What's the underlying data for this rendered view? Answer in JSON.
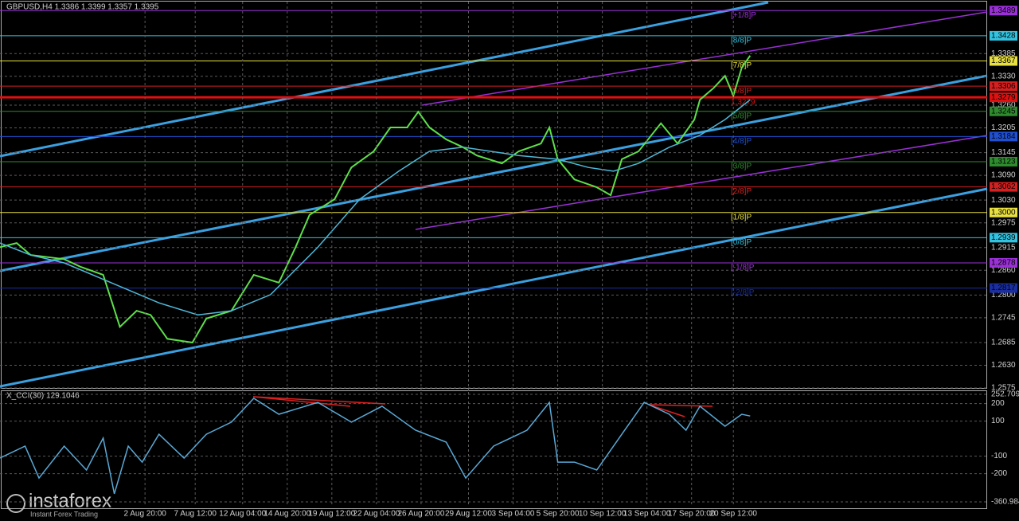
{
  "chart_data": [
    {
      "type": "line",
      "title": "GBPUSD,H4 1.3386 1.3399 1.3357 1.3395",
      "xlim": [
        0,
        354
      ],
      "ylim": [
        1.2575,
        1.3505
      ],
      "grid": true,
      "yticks": [
        1.3385,
        {
          "value": 1.333,
          "label": "1.3330"
        },
        {
          "value": 1.326,
          "label": "1.3260"
        },
        1.3205,
        1.3145,
        {
          "value": 1.309,
          "label": "1.3090"
        },
        {
          "value": 1.303,
          "label": "1.3030"
        },
        1.2975,
        1.2915,
        {
          "value": 1.286,
          "label": "1.2860"
        },
        {
          "value": 1.28,
          "label": "1.2800"
        },
        1.2745,
        1.2685,
        {
          "value": 1.263,
          "label": "1.2630"
        },
        1.2575
      ],
      "series": [
        {
          "color": "#5ee04a",
          "x": [
            0,
            6,
            11,
            23,
            29,
            37,
            43,
            49,
            54,
            60,
            69,
            74,
            83,
            91,
            100,
            106,
            111,
            120,
            126,
            134,
            140,
            146,
            150,
            154,
            160,
            166,
            171,
            180,
            186,
            194,
            197,
            200,
            206,
            214,
            219,
            223,
            229,
            237,
            243,
            249,
            251,
            256,
            260,
            263,
            266,
            269
          ],
          "values": [
            1.2916,
            1.2926,
            1.2897,
            1.2887,
            1.2868,
            1.2849,
            1.2723,
            1.2762,
            1.2752,
            1.2694,
            1.2685,
            1.2743,
            1.2762,
            1.2849,
            1.283,
            1.2916,
            1.2994,
            1.3032,
            1.3109,
            1.3148,
            1.3206,
            1.3206,
            1.3244,
            1.3206,
            1.3177,
            1.3158,
            1.3138,
            1.3119,
            1.3148,
            1.3167,
            1.3206,
            1.3129,
            1.308,
            1.3061,
            1.3042,
            1.3129,
            1.3148,
            1.3216,
            1.3167,
            1.3225,
            1.3273,
            1.3302,
            1.3331,
            1.3283,
            1.3351,
            1.338
          ]
        },
        {
          "color": "#4fb8d8",
          "x": [
            0,
            11,
            23,
            57,
            71,
            83,
            97,
            114,
            129,
            143,
            154,
            166,
            186,
            200,
            211,
            220,
            229,
            240,
            251,
            260,
            269
          ],
          "values": [
            1.2926,
            1.2897,
            1.2878,
            1.2781,
            1.2752,
            1.2762,
            1.2801,
            1.2916,
            1.3032,
            1.31,
            1.3148,
            1.3158,
            1.3138,
            1.3129,
            1.3109,
            1.31,
            1.3119,
            1.3158,
            1.3187,
            1.3225,
            1.3273
          ]
        }
      ],
      "levels": [
        {
          "name": "[+1/8]P",
          "value": 1.3489,
          "value_label": "1.3489",
          "color": "#9b30d8"
        },
        {
          "name": "[8/8]P",
          "value": 1.3428,
          "value_label": "1.3428",
          "color": "#33c3e0"
        },
        {
          "name": "[7/8]P",
          "value": 1.3367,
          "value_label": "1.3367",
          "color": "#e8e040"
        },
        {
          "name": "[6/8]P",
          "value": 1.3306,
          "value_label": "1.3306",
          "color": "#d42020"
        },
        {
          "name": "1.3279",
          "value": 1.3279,
          "value_label": "1.3279",
          "color": "#e01010"
        },
        {
          "name": "[5/8]P",
          "value": 1.3245,
          "value_label": "1.3245",
          "color": "#2e8b2e"
        },
        {
          "name": "[4/8]P",
          "value": 1.3184,
          "value_label": "1.3184",
          "color": "#2050d0"
        },
        {
          "name": "[3/8]P",
          "value": 1.3123,
          "value_label": "1.3123",
          "color": "#2e8b2e"
        },
        {
          "name": "[2/8]P",
          "value": 1.3062,
          "value_label": "1.3062",
          "color": "#d42020"
        },
        {
          "name": "[1/8]P",
          "value": 1.3,
          "value_label": "1.3000",
          "color": "#e8e040"
        },
        {
          "name": "[0/8]P",
          "value": 1.2939,
          "value_label": "1.2939",
          "color": "#33c3e0"
        },
        {
          "name": "[-1/8]P",
          "value": 1.2878,
          "value_label": "1.2878",
          "color": "#9b30d8"
        },
        {
          "name": "[-2/8]P",
          "value": 1.2817,
          "value_label": "1.2817",
          "color": "#1a2ea0"
        }
      ]
    },
    {
      "type": "line",
      "title": "X_CCI(30) 129.1046",
      "xlim": [
        0,
        354
      ],
      "ylim": [
        -360.984,
        252.7091
      ],
      "grid": true,
      "yticks": [
        252.7091,
        200,
        100,
        -100,
        -200,
        -360.984
      ],
      "xticks": [
        {
          "value": 52,
          "label": "2 Aug 20:00"
        },
        {
          "value": 70,
          "label": "7 Aug 12:00"
        },
        {
          "value": 87,
          "label": "12 Aug 04:00"
        },
        {
          "value": 103,
          "label": "14 Aug 20:00"
        },
        {
          "value": 119,
          "label": "19 Aug 12:00"
        },
        {
          "value": 135,
          "label": "22 Aug 04:00"
        },
        {
          "value": 151,
          "label": "26 Aug 20:00"
        },
        {
          "value": 168,
          "label": "29 Aug 12:00"
        },
        {
          "value": 184,
          "label": "3 Sep 04:00"
        },
        {
          "value": 200,
          "label": "5 Sep 20:00"
        },
        {
          "value": 216,
          "label": "10 Sep 12:00"
        },
        {
          "value": 232,
          "label": "13 Sep 04:00"
        },
        {
          "value": 248,
          "label": "17 Sep 20:00"
        },
        {
          "value": 263,
          "label": "20 Sep 12:00"
        }
      ],
      "series": [
        {
          "color": "#5aa9d6",
          "x": [
            0,
            9,
            14,
            23,
            31,
            37,
            41,
            46,
            51,
            57,
            66,
            74,
            83,
            91,
            100,
            114,
            126,
            137,
            149,
            160,
            167,
            177,
            189,
            197,
            200,
            206,
            214,
            223,
            231,
            240,
            246,
            251,
            260,
            266,
            269
          ],
          "values": [
            -111,
            -43,
            -225,
            -43,
            -179,
            3,
            -315,
            -43,
            -134,
            25,
            -111,
            25,
            94,
            230,
            139,
            207,
            94,
            185,
            48,
            -20,
            -225,
            -43,
            48,
            207,
            -134,
            -134,
            -179,
            25,
            207,
            139,
            48,
            185,
            71,
            139,
            129.1
          ]
        }
      ]
    }
  ],
  "logo": {
    "brand": "instaforex",
    "tagline": "Instant Forex Trading"
  }
}
